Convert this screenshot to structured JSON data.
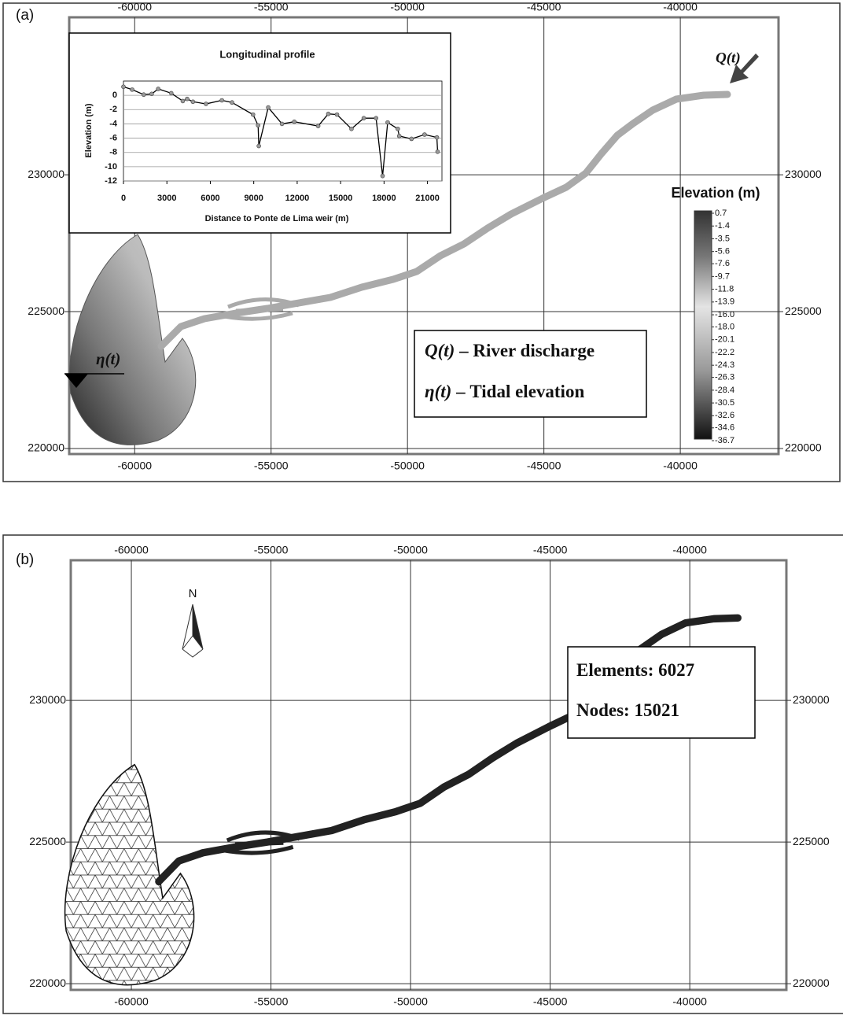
{
  "panels": [
    {
      "label": "(a)",
      "xlim": [
        -62400,
        -36400
      ],
      "ylim": [
        219800,
        235750
      ],
      "xticks": [
        -60000,
        -55000,
        -50000,
        -45000,
        -40000
      ],
      "yticks": [
        220000,
        225000,
        230000
      ],
      "annotations": [
        "Q(t)",
        "η(t)"
      ],
      "legend": [
        {
          "symbol": "Q(t)",
          "text": "– River discharge"
        },
        {
          "symbol": "η(t)",
          "text": "– Tidal elevation"
        }
      ],
      "colorbar": {
        "title": "Elevation (m)",
        "ticks": [
          0.7,
          -1.4,
          -3.5,
          -5.6,
          -7.6,
          -9.7,
          -11.8,
          -13.9,
          {
            "value": -16,
            "label": "-16.0"
          },
          {
            "value": -18,
            "label": "-18.0"
          },
          -20.1,
          -22.2,
          -24.3,
          -26.3,
          -28.4,
          -30.5,
          -32.6,
          -34.6,
          -36.7
        ]
      }
    },
    {
      "label": "(b)",
      "xlim": [
        -62170,
        -36540
      ],
      "ylim": [
        219780,
        234950
      ],
      "xticks": [
        -60000,
        -55000,
        -50000,
        -45000,
        -40000
      ],
      "yticks": [
        220000,
        225000,
        230000
      ],
      "north": "N",
      "mesh_info": [
        {
          "label": "Elements:",
          "value": 6027
        },
        {
          "label": "Nodes:",
          "value": 15021
        }
      ]
    }
  ],
  "chart_data": {
    "type": "line",
    "title": "Longitudinal profile",
    "x_label": "Distance to Ponte de Lima weir (m)",
    "y_label": "Elevation (m)",
    "x": [
      0,
      600,
      1400,
      1950,
      2400,
      3300,
      4100,
      4400,
      4800,
      5700,
      6800,
      7500,
      8950,
      9300,
      9350,
      10000,
      10950,
      11800,
      13450,
      14150,
      14750,
      15750,
      16600,
      17450,
      17900,
      18250,
      18950,
      19050,
      19900,
      20800,
      21650,
      21700
    ],
    "values": [
      1.2,
      0.8,
      0.1,
      0.2,
      0.9,
      0.3,
      -0.8,
      -0.5,
      -0.9,
      -1.2,
      -0.7,
      -1.0,
      -2.7,
      -4.2,
      -7.1,
      -1.7,
      -4.0,
      -3.7,
      -4.3,
      -2.6,
      -2.7,
      -4.7,
      -3.2,
      -3.2,
      -11.3,
      -3.8,
      -4.7,
      -5.7,
      -6.1,
      -5.5,
      -5.9,
      -7.9
    ],
    "xlim": [
      0,
      22000
    ],
    "ylim": [
      -12,
      2
    ],
    "xticks": [
      0,
      3000,
      6000,
      9000,
      12000,
      15000,
      18000,
      21000
    ],
    "yticks": [
      -12,
      -10,
      -8,
      -6,
      -4,
      -2,
      0
    ],
    "color": "#000000",
    "grid": true
  }
}
